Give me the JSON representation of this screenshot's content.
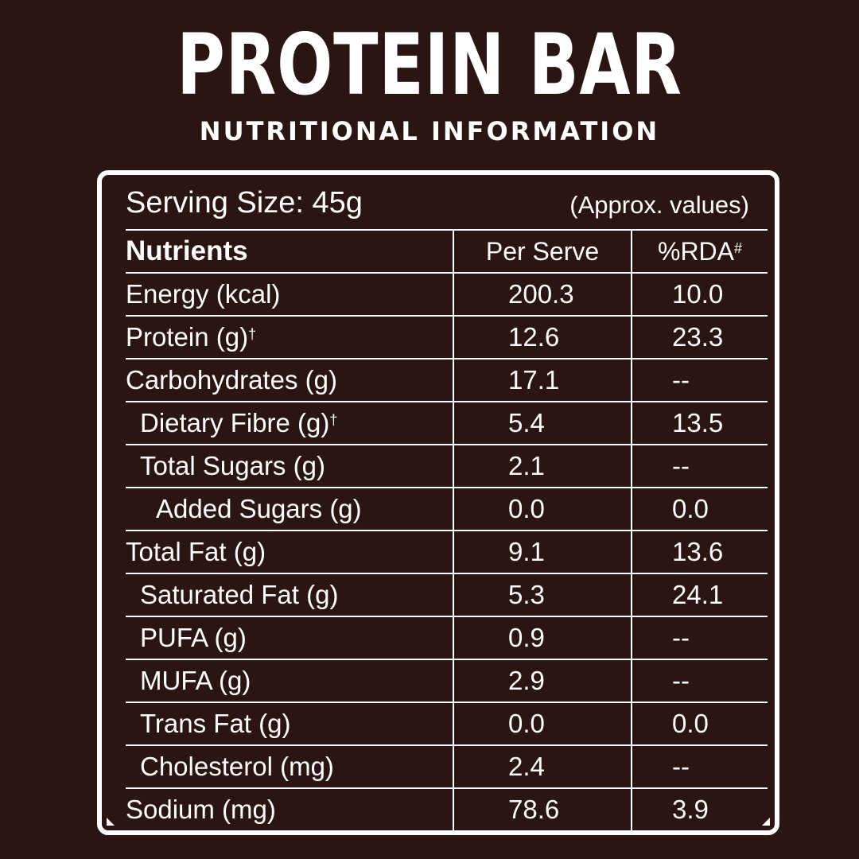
{
  "header": {
    "title": "PROTEIN BAR",
    "subtitle": "NUTRITIONAL INFORMATION"
  },
  "label": {
    "serving_size": "Serving Size: 45g",
    "approx_note": "(Approx. values)",
    "columns": {
      "nutrients": "Nutrients",
      "per_serve": "Per Serve",
      "rda": "%RDA",
      "rda_mark": "#"
    },
    "rows": [
      {
        "name": "Energy (kcal)",
        "mark": "",
        "per_serve": "200.3",
        "rda": "10.0",
        "indent": 0
      },
      {
        "name": "Protein (g)",
        "mark": "†",
        "per_serve": "12.6",
        "rda": "23.3",
        "indent": 0
      },
      {
        "name": "Carbohydrates (g)",
        "mark": "",
        "per_serve": "17.1",
        "rda": "--",
        "indent": 0
      },
      {
        "name": "Dietary Fibre (g)",
        "mark": "†",
        "per_serve": "5.4",
        "rda": "13.5",
        "indent": 1
      },
      {
        "name": "Total Sugars (g)",
        "mark": "",
        "per_serve": "2.1",
        "rda": "--",
        "indent": 1
      },
      {
        "name": "Added Sugars (g)",
        "mark": "",
        "per_serve": "0.0",
        "rda": "0.0",
        "indent": 2
      },
      {
        "name": "Total Fat (g)",
        "mark": "",
        "per_serve": "9.1",
        "rda": "13.6",
        "indent": 0
      },
      {
        "name": "Saturated Fat (g)",
        "mark": "",
        "per_serve": "5.3",
        "rda": "24.1",
        "indent": 1
      },
      {
        "name": "PUFA (g)",
        "mark": "",
        "per_serve": "0.9",
        "rda": "--",
        "indent": 1
      },
      {
        "name": "MUFA (g)",
        "mark": "",
        "per_serve": "2.9",
        "rda": "--",
        "indent": 1
      },
      {
        "name": "Trans Fat (g)",
        "mark": "",
        "per_serve": "0.0",
        "rda": "0.0",
        "indent": 1
      },
      {
        "name": "Cholesterol (mg)",
        "mark": "",
        "per_serve": "2.4",
        "rda": "--",
        "indent": 1
      },
      {
        "name": "Sodium (mg)",
        "mark": "",
        "per_serve": "78.6",
        "rda": "3.9",
        "indent": 0
      }
    ]
  },
  "colors": {
    "background": "#2b1512",
    "text": "#ffffff",
    "border": "#ffffff"
  }
}
